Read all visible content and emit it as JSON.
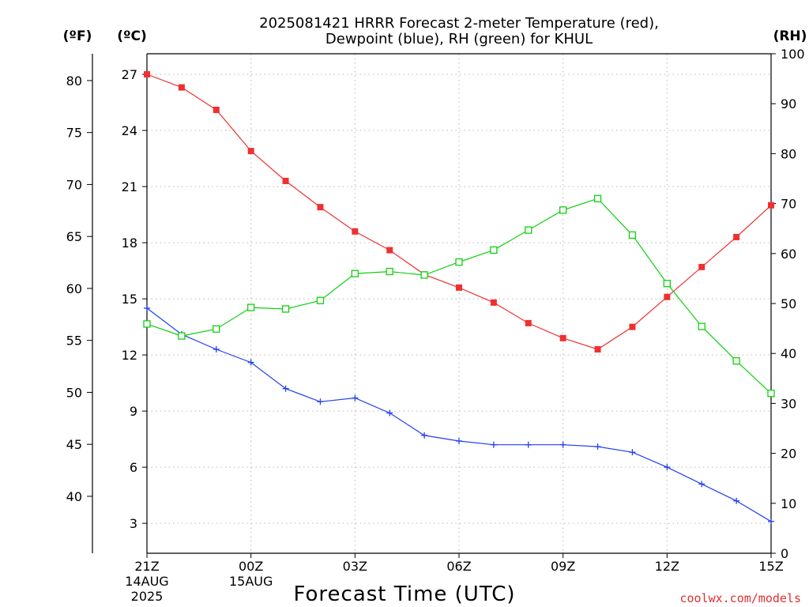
{
  "chart_data": {
    "type": "line",
    "title_line1": "2025081421 HRRR Forecast 2-meter Temperature (red),",
    "title_line2": "Dewpoint (blue), RH (green) for KHUL",
    "units": {
      "fahrenheit": "(ºF)",
      "celsius": "(ºC)",
      "rh": "(RH)"
    },
    "xlabel": "Forecast Time (UTC)",
    "credit": "coolwx.com/models",
    "x_ticks": [
      {
        "hour": 0,
        "lines": [
          "21Z",
          "14AUG",
          "2025"
        ]
      },
      {
        "hour": 3,
        "lines": [
          "00Z",
          "15AUG"
        ]
      },
      {
        "hour": 6,
        "lines": [
          "03Z"
        ]
      },
      {
        "hour": 9,
        "lines": [
          "06Z"
        ]
      },
      {
        "hour": 12,
        "lines": [
          "09Z"
        ]
      },
      {
        "hour": 15,
        "lines": [
          "12Z"
        ]
      },
      {
        "hour": 18,
        "lines": [
          "15Z"
        ]
      }
    ],
    "x_range": [
      0,
      18
    ],
    "celsius_axis": {
      "range": [
        1.4,
        28.1
      ],
      "ticks": [
        "3",
        "6",
        "9",
        "12",
        "15",
        "18",
        "21",
        "24",
        "27"
      ]
    },
    "fahrenheit_axis": {
      "ticks": [
        "40",
        "45",
        "50",
        "55",
        "60",
        "65",
        "70",
        "75",
        "80"
      ]
    },
    "rh_axis": {
      "range": [
        0,
        100
      ],
      "ticks": [
        "0",
        "10",
        "20",
        "30",
        "40",
        "50",
        "60",
        "70",
        "80",
        "90",
        "100"
      ]
    },
    "grid": true,
    "colors": {
      "temperature": "#f03030",
      "dewpoint": "#2040f0",
      "rh": "#10d010"
    },
    "series": [
      {
        "name": "Temperature",
        "axis": "celsius",
        "marker": "filled-square",
        "x": [
          0,
          1,
          2,
          3,
          4,
          5,
          6,
          7,
          8,
          9,
          10,
          11,
          12,
          13,
          14,
          15,
          16,
          17,
          18
        ],
        "values": [
          27.0,
          26.3,
          25.1,
          22.9,
          21.3,
          19.9,
          18.6,
          17.6,
          16.3,
          15.6,
          14.8,
          13.7,
          12.9,
          12.3,
          13.5,
          15.1,
          16.7,
          18.3,
          20.0
        ]
      },
      {
        "name": "Dewpoint",
        "axis": "celsius",
        "marker": "plus",
        "x": [
          0,
          1,
          2,
          3,
          4,
          5,
          6,
          7,
          8,
          9,
          10,
          11,
          12,
          13,
          14,
          15,
          16,
          17,
          18
        ],
        "values": [
          14.5,
          13.1,
          12.3,
          11.6,
          10.2,
          9.5,
          9.7,
          8.9,
          7.7,
          7.4,
          7.2,
          7.2,
          7.2,
          7.1,
          6.8,
          6.0,
          5.1,
          4.2,
          3.1
        ]
      },
      {
        "name": "RH",
        "axis": "rh",
        "marker": "open-square",
        "x": [
          0,
          1,
          2,
          3,
          4,
          5,
          6,
          7,
          8,
          9,
          10,
          11,
          12,
          13,
          14,
          15,
          16,
          17,
          18
        ],
        "values": [
          45.9,
          43.5,
          44.9,
          49.2,
          48.9,
          50.6,
          56.0,
          56.4,
          55.7,
          58.3,
          60.7,
          64.7,
          68.7,
          71.0,
          63.7,
          54.0,
          45.4,
          38.5,
          32.0
        ]
      }
    ]
  }
}
